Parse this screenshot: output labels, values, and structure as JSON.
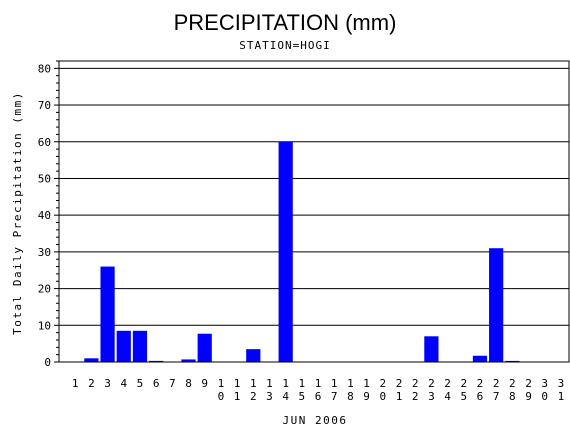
{
  "chart_data": {
    "type": "bar",
    "title": "PRECIPITATION (mm)",
    "subtitle": "STATION=HOGI",
    "xlabel": "JUN 2006",
    "ylabel": "Total Daily Precipitation (mm)",
    "ylim": [
      0,
      82
    ],
    "yticks": [
      0,
      10,
      20,
      30,
      40,
      50,
      60,
      70,
      80
    ],
    "grid": true,
    "bar_color": "#0000ff",
    "categories": [
      "1",
      "2",
      "3",
      "4",
      "5",
      "6",
      "7",
      "8",
      "9",
      "10",
      "11",
      "12",
      "13",
      "14",
      "15",
      "16",
      "17",
      "18",
      "19",
      "20",
      "21",
      "22",
      "23",
      "24",
      "25",
      "26",
      "27",
      "28",
      "29",
      "30",
      "31"
    ],
    "values": [
      0,
      1,
      26,
      8.5,
      8.5,
      0.3,
      0,
      0.7,
      7.7,
      0,
      0,
      3.5,
      0,
      60,
      0,
      0,
      0,
      0,
      0,
      0,
      0,
      0,
      7,
      0,
      0,
      1.7,
      31,
      0.3,
      0,
      0,
      0
    ]
  }
}
